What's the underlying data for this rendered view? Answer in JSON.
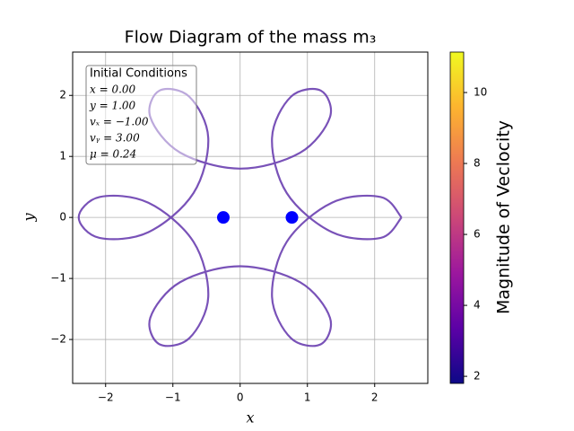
{
  "chart_data": {
    "type": "line",
    "title": "Flow Diagram of the mass m₃",
    "xlabel": "x",
    "ylabel": "y",
    "xlim": [
      -2.49,
      2.79
    ],
    "ylim": [
      -2.72,
      2.71
    ],
    "xticks": [
      {
        "value": -2,
        "label": "−2"
      },
      {
        "value": -1,
        "label": "−1"
      },
      0,
      1,
      2
    ],
    "yticks": [
      {
        "value": -2,
        "label": "−2"
      },
      {
        "value": -1,
        "label": "−1"
      },
      0,
      1,
      2
    ],
    "grid": true,
    "trajectory": {
      "color": "#6a3fb0",
      "x": [
        2.4,
        2.09,
        1.365,
        0.693,
        0.474,
        0.755,
        1.2,
        1.335,
        0.892,
        0.0,
        -0.891,
        -1.335,
        -1.2,
        -0.755,
        -0.474,
        -0.693,
        -1.365,
        -2.091,
        -2.4,
        -2.09,
        -1.365,
        -0.693,
        -0.474,
        -0.755,
        -1.2,
        -1.335,
        -0.892,
        0.0,
        0.891,
        1.335,
        1.2,
        0.755,
        0.474,
        0.693,
        1.365,
        2.091,
        2.4
      ],
      "y": [
        0.0,
        -0.335,
        -0.241,
        0.4,
        1.303,
        1.978,
        2.078,
        1.642,
        1.061,
        0.8,
        1.062,
        1.643,
        2.078,
        1.978,
        1.303,
        0.4,
        -0.242,
        -0.335,
        0.0,
        0.335,
        0.241,
        -0.4,
        -1.303,
        -1.978,
        -2.078,
        -1.642,
        -1.061,
        -0.8,
        -1.062,
        -1.643,
        -2.078,
        -1.978,
        -1.303,
        -0.4,
        0.242,
        0.335,
        0.0
      ]
    },
    "masses": {
      "color": "#0000ff",
      "x": [
        -0.25,
        0.77
      ],
      "y": [
        0,
        0
      ]
    },
    "annotations": [
      "Initial Conditions",
      "x = 0.00",
      "y = 1.00",
      "vₓ = −1.00",
      "vᵧ = 3.00",
      "μ = 0.24"
    ],
    "colorbar": {
      "label": "Magnitude of Veclocity",
      "lim": [
        1.8,
        11.14
      ],
      "ticks": [
        2,
        4,
        6,
        8,
        10
      ],
      "colors": [
        "#0d0887",
        "#5c01a6",
        "#9c179e",
        "#cc4778",
        "#ed7953",
        "#fdb42f",
        "#f0f921"
      ]
    }
  }
}
